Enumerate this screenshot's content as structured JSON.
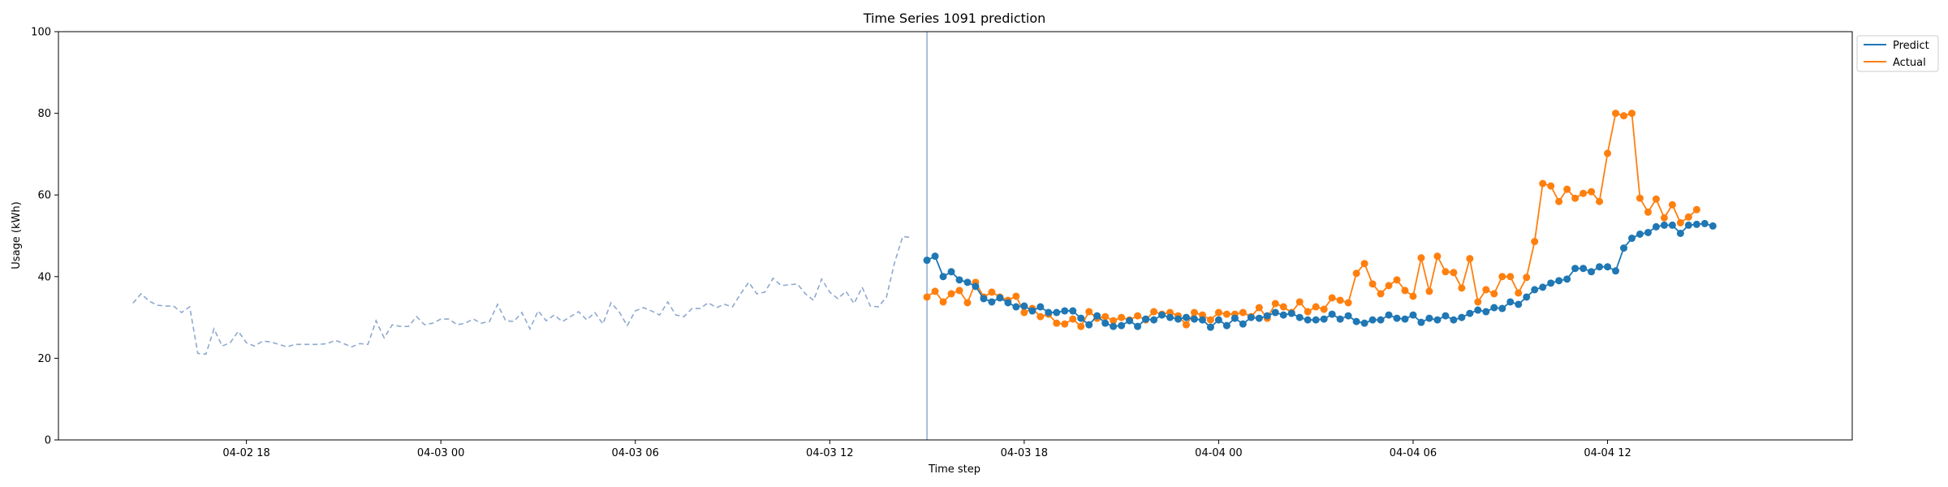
{
  "chart_data": {
    "type": "line",
    "title": "Time Series 1091 prediction",
    "xlabel": "Time step",
    "ylabel": "Usage (kWh)",
    "ylim": [
      0,
      100
    ],
    "yticks": [
      0,
      20,
      40,
      60,
      80,
      100
    ],
    "xlim": [
      "2025-04-02 12:12",
      "2025-04-04 19:33"
    ],
    "xticks": [
      {
        "value": "2025-04-02 18:00",
        "label": "04-02 18"
      },
      {
        "value": "2025-04-03 00:00",
        "label": "04-03 00"
      },
      {
        "value": "2025-04-03 06:00",
        "label": "04-03 06"
      },
      {
        "value": "2025-04-03 12:00",
        "label": "04-03 12"
      },
      {
        "value": "2025-04-03 18:00",
        "label": "04-03 18"
      },
      {
        "value": "2025-04-04 00:00",
        "label": "04-04 00"
      },
      {
        "value": "2025-04-04 06:00",
        "label": "04-04 06"
      },
      {
        "value": "2025-04-04 12:00",
        "label": "04-04 12"
      }
    ],
    "grid": false,
    "legend_position": "outside top-right",
    "vertical_line_x": "2025-04-03 15:00",
    "history": {
      "x_start": "2025-04-02 14:30",
      "x_step_minutes": 15,
      "values": [
        33.5,
        35.8,
        34,
        33,
        32.8,
        32.8,
        31.2,
        32.6,
        21.2,
        21,
        27.2,
        23,
        23.8,
        26.6,
        23.8,
        23,
        24.2,
        24,
        23.4,
        22.8,
        23.4,
        23.4,
        23.4,
        23.4,
        23.6,
        24.4,
        23.6,
        22.8,
        23.6,
        23.4,
        29.2,
        25,
        28.2,
        27.8,
        27.8,
        30.2,
        28.2,
        28.6,
        29.6,
        29.6,
        28.2,
        28.6,
        29.6,
        28.6,
        29,
        33.2,
        29.2,
        29,
        31.2,
        27.2,
        31.6,
        29.2,
        30.6,
        29,
        30.2,
        31.4,
        29.4,
        31.2,
        28.4,
        33.6,
        31.4,
        28,
        31.6,
        32.4,
        31.6,
        30.6,
        33.8,
        30.6,
        30.2,
        32.2,
        32.2,
        33.6,
        32.4,
        33.2,
        32.6,
        35.8,
        38.6,
        35.8,
        36.2,
        39.6,
        37.8,
        38,
        38.2,
        35.8,
        34.2,
        39.4,
        36.2,
        34.6,
        36.4,
        33.4,
        37.4,
        32.8,
        32.6,
        35,
        43.4,
        49.8,
        49.6
      ]
    },
    "x_start": "2025-04-03 15:00",
    "x_step_minutes": 15,
    "series": [
      {
        "name": "Predict",
        "color": "#1f77b4",
        "values": [
          44,
          45,
          40,
          41.2,
          39.2,
          38.6,
          37.6,
          34.6,
          33.8,
          34.8,
          33.6,
          32.6,
          32.8,
          31.6,
          32.6,
          31.2,
          31.2,
          31.6,
          31.6,
          29.8,
          28.2,
          30.4,
          28.6,
          27.8,
          28,
          29.2,
          27.8,
          29.6,
          29.4,
          30.6,
          30,
          29.6,
          30,
          29.6,
          29.4,
          27.6,
          29.4,
          28,
          29.8,
          28.4,
          30,
          29.8,
          30.4,
          31.2,
          30.6,
          31,
          30,
          29.4,
          29.4,
          29.6,
          30.8,
          29.6,
          30.4,
          29,
          28.6,
          29.4,
          29.4,
          30.6,
          29.8,
          29.6,
          30.6,
          28.8,
          29.8,
          29.4,
          30.4,
          29.4,
          30,
          31,
          31.8,
          31.4,
          32.4,
          32.2,
          33.8,
          33.2,
          35,
          36.8,
          37.4,
          38.4,
          39,
          39.4,
          42,
          42,
          41.2,
          42.4,
          42.4,
          41.4,
          47,
          49.4,
          50.4,
          50.8,
          52.2,
          52.6,
          52.6,
          50.6,
          52.6,
          52.8,
          53,
          52.4
        ]
      },
      {
        "name": "Actual",
        "color": "#ff7f0e",
        "values": [
          35,
          36.4,
          33.8,
          35.8,
          36.6,
          33.6,
          38.6,
          35,
          36.2,
          35,
          34.2,
          35.2,
          31.2,
          32.2,
          30.2,
          30.8,
          28.6,
          28.4,
          29.6,
          27.8,
          31.4,
          29.8,
          30.2,
          29.2,
          30,
          29.4,
          30.4,
          29.4,
          31.4,
          30.8,
          31.2,
          30.4,
          28.2,
          31.2,
          30.6,
          29.4,
          31.2,
          30.8,
          30.8,
          31.2,
          30.2,
          32.4,
          29.8,
          33.4,
          32.6,
          31.2,
          33.8,
          31.4,
          32.6,
          32,
          34.8,
          34.2,
          33.6,
          40.8,
          43.2,
          38.2,
          35.8,
          37.8,
          39.2,
          36.6,
          35.2,
          44.6,
          36.4,
          45,
          41.2,
          41,
          37.2,
          44.4,
          33.8,
          36.8,
          35.8,
          40,
          40,
          36,
          39.8,
          48.6,
          62.8,
          62.2,
          58.4,
          61.4,
          59.2,
          60.4,
          60.8,
          58.4,
          70.2,
          80,
          79.4,
          80,
          59.2,
          55.8,
          59,
          54.4,
          57.6,
          53.2,
          54.6,
          56.4
        ]
      }
    ]
  }
}
